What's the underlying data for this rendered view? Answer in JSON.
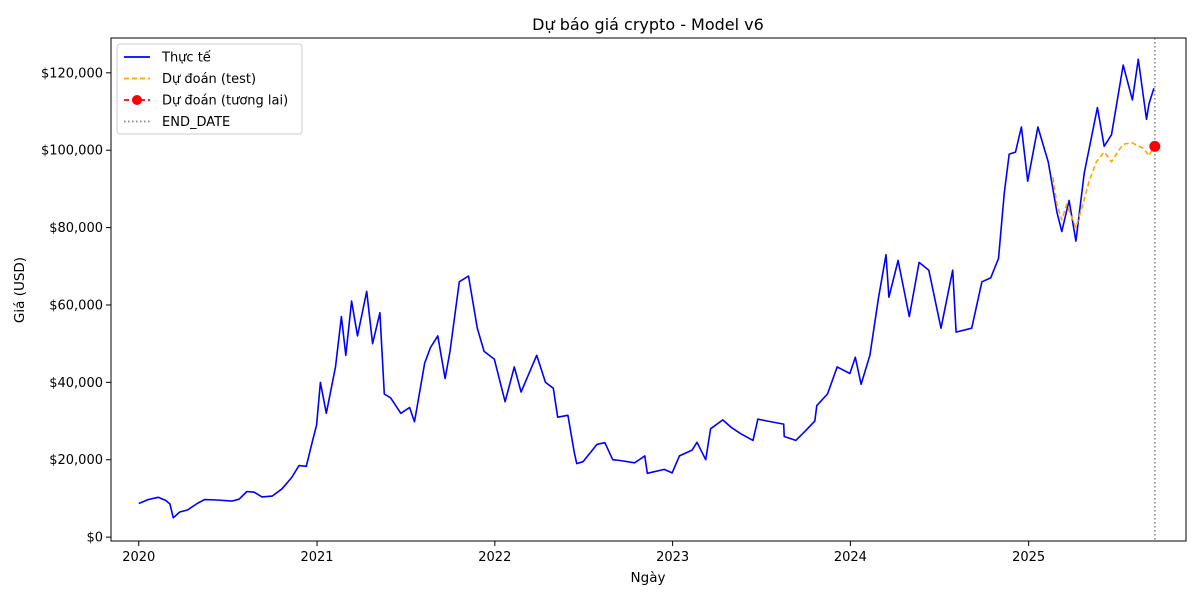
{
  "chart_data": {
    "type": "line",
    "title": "Dự báo giá crypto - Model v6",
    "xlabel": "Ngày",
    "ylabel": "Giá (USD)",
    "x_tick_labels": [
      "2020",
      "2021",
      "2022",
      "2023",
      "2024",
      "2025"
    ],
    "y_tick_labels": [
      "$0",
      "$20,000",
      "$40,000",
      "$60,000",
      "$80,000",
      "$100,000",
      "$120,000"
    ],
    "y_ticks": [
      0,
      20000,
      40000,
      60000,
      80000,
      100000,
      120000
    ],
    "xlim": [
      "2019-11-05",
      "2025-11-20"
    ],
    "ylim": [
      -1000,
      129000
    ],
    "grid": false,
    "legend_position": "upper-left",
    "colors": {
      "actual": "#0000ff",
      "test": "#ffa500",
      "future": "#ff0000",
      "end_date": "#808080"
    },
    "series": [
      {
        "name": "Thực tế",
        "style": "solid",
        "points": [
          [
            "2020-01-01",
            8700
          ],
          [
            "2020-01-20",
            9700
          ],
          [
            "2020-02-10",
            10300
          ],
          [
            "2020-02-25",
            9500
          ],
          [
            "2020-03-05",
            8600
          ],
          [
            "2020-03-12",
            5000
          ],
          [
            "2020-03-25",
            6500
          ],
          [
            "2020-04-10",
            7000
          ],
          [
            "2020-04-30",
            8700
          ],
          [
            "2020-05-15",
            9700
          ],
          [
            "2020-06-10",
            9600
          ],
          [
            "2020-07-10",
            9300
          ],
          [
            "2020-07-25",
            9800
          ],
          [
            "2020-08-10",
            11800
          ],
          [
            "2020-08-25",
            11600
          ],
          [
            "2020-09-10",
            10400
          ],
          [
            "2020-10-01",
            10600
          ],
          [
            "2020-10-21",
            12500
          ],
          [
            "2020-11-10",
            15400
          ],
          [
            "2020-11-25",
            18500
          ],
          [
            "2020-12-10",
            18300
          ],
          [
            "2020-12-20",
            23500
          ],
          [
            "2020-12-31",
            29000
          ],
          [
            "2021-01-08",
            40000
          ],
          [
            "2021-01-20",
            32000
          ],
          [
            "2021-02-08",
            44000
          ],
          [
            "2021-02-20",
            57000
          ],
          [
            "2021-03-01",
            47000
          ],
          [
            "2021-03-13",
            61000
          ],
          [
            "2021-03-25",
            52000
          ],
          [
            "2021-04-13",
            63500
          ],
          [
            "2021-04-25",
            50000
          ],
          [
            "2021-05-10",
            58000
          ],
          [
            "2021-05-19",
            37000
          ],
          [
            "2021-06-01",
            36000
          ],
          [
            "2021-06-22",
            32000
          ],
          [
            "2021-07-10",
            33500
          ],
          [
            "2021-07-20",
            29800
          ],
          [
            "2021-08-10",
            45000
          ],
          [
            "2021-08-22",
            49000
          ],
          [
            "2021-09-06",
            52000
          ],
          [
            "2021-09-21",
            41000
          ],
          [
            "2021-10-01",
            48000
          ],
          [
            "2021-10-20",
            66000
          ],
          [
            "2021-11-08",
            67500
          ],
          [
            "2021-11-26",
            54000
          ],
          [
            "2021-12-10",
            48000
          ],
          [
            "2021-12-31",
            46000
          ],
          [
            "2022-01-22",
            35000
          ],
          [
            "2022-02-10",
            44000
          ],
          [
            "2022-02-24",
            37500
          ],
          [
            "2022-03-28",
            47000
          ],
          [
            "2022-04-15",
            40000
          ],
          [
            "2022-05-01",
            38500
          ],
          [
            "2022-05-10",
            31000
          ],
          [
            "2022-05-31",
            31500
          ],
          [
            "2022-06-13",
            22000
          ],
          [
            "2022-06-18",
            19000
          ],
          [
            "2022-07-01",
            19500
          ],
          [
            "2022-07-30",
            24000
          ],
          [
            "2022-08-15",
            24400
          ],
          [
            "2022-08-31",
            20000
          ],
          [
            "2022-09-15",
            19800
          ],
          [
            "2022-10-15",
            19200
          ],
          [
            "2022-11-05",
            21000
          ],
          [
            "2022-11-10",
            16500
          ],
          [
            "2022-12-15",
            17500
          ],
          [
            "2022-12-31",
            16600
          ],
          [
            "2023-01-15",
            21000
          ],
          [
            "2023-02-10",
            22500
          ],
          [
            "2023-02-20",
            24500
          ],
          [
            "2023-03-10",
            20000
          ],
          [
            "2023-03-20",
            28000
          ],
          [
            "2023-04-14",
            30300
          ],
          [
            "2023-04-30",
            28500
          ],
          [
            "2023-05-20",
            26800
          ],
          [
            "2023-06-15",
            25000
          ],
          [
            "2023-06-25",
            30500
          ],
          [
            "2023-07-15",
            30000
          ],
          [
            "2023-08-17",
            29200
          ],
          [
            "2023-08-18",
            26000
          ],
          [
            "2023-09-11",
            25000
          ],
          [
            "2023-10-01",
            27500
          ],
          [
            "2023-10-20",
            30000
          ],
          [
            "2023-10-24",
            34000
          ],
          [
            "2023-11-15",
            37000
          ],
          [
            "2023-12-05",
            44000
          ],
          [
            "2023-12-31",
            42300
          ],
          [
            "2024-01-11",
            46500
          ],
          [
            "2024-01-23",
            39500
          ],
          [
            "2024-02-10",
            47000
          ],
          [
            "2024-02-28",
            62000
          ],
          [
            "2024-03-14",
            73000
          ],
          [
            "2024-03-20",
            62000
          ],
          [
            "2024-04-08",
            71500
          ],
          [
            "2024-05-01",
            57000
          ],
          [
            "2024-05-21",
            71000
          ],
          [
            "2024-06-10",
            69000
          ],
          [
            "2024-07-05",
            54000
          ],
          [
            "2024-07-29",
            69000
          ],
          [
            "2024-08-05",
            53000
          ],
          [
            "2024-09-06",
            54000
          ],
          [
            "2024-09-27",
            66000
          ],
          [
            "2024-10-15",
            67000
          ],
          [
            "2024-10-31",
            72000
          ],
          [
            "2024-11-12",
            89000
          ],
          [
            "2024-11-22",
            99000
          ],
          [
            "2024-12-05",
            99500
          ],
          [
            "2024-12-17",
            106000
          ],
          [
            "2024-12-30",
            92000
          ],
          [
            "2025-01-20",
            106000
          ],
          [
            "2025-02-10",
            97000
          ],
          [
            "2025-02-28",
            84000
          ],
          [
            "2025-03-10",
            79000
          ],
          [
            "2025-03-25",
            87000
          ],
          [
            "2025-04-08",
            76500
          ],
          [
            "2025-04-25",
            94000
          ],
          [
            "2025-05-22",
            111000
          ],
          [
            "2025-06-05",
            101000
          ],
          [
            "2025-06-20",
            104000
          ],
          [
            "2025-07-14",
            122000
          ],
          [
            "2025-08-02",
            113000
          ],
          [
            "2025-08-14",
            123500
          ],
          [
            "2025-08-31",
            108000
          ],
          [
            "2025-09-05",
            112000
          ],
          [
            "2025-09-15",
            116000
          ]
        ]
      },
      {
        "name": "Dự đoán (test)",
        "style": "dashed",
        "points": [
          [
            "2025-02-20",
            93000
          ],
          [
            "2025-02-28",
            86000
          ],
          [
            "2025-03-10",
            82000
          ],
          [
            "2025-03-20",
            86000
          ],
          [
            "2025-04-08",
            80000
          ],
          [
            "2025-04-20",
            85000
          ],
          [
            "2025-05-05",
            92000
          ],
          [
            "2025-05-20",
            97000
          ],
          [
            "2025-06-05",
            99500
          ],
          [
            "2025-06-20",
            97000
          ],
          [
            "2025-07-05",
            100000
          ],
          [
            "2025-07-14",
            101500
          ],
          [
            "2025-07-31",
            102000
          ],
          [
            "2025-08-15",
            101000
          ],
          [
            "2025-08-25",
            100500
          ],
          [
            "2025-09-05",
            98500
          ],
          [
            "2025-09-15",
            101000
          ]
        ]
      },
      {
        "name": "Dự đoán (tương lai)",
        "style": "dashed-marker",
        "points": [
          [
            "2025-09-17",
            101000
          ]
        ]
      },
      {
        "name": "END_DATE",
        "style": "dotted-vline",
        "x": "2025-09-17"
      }
    ]
  }
}
